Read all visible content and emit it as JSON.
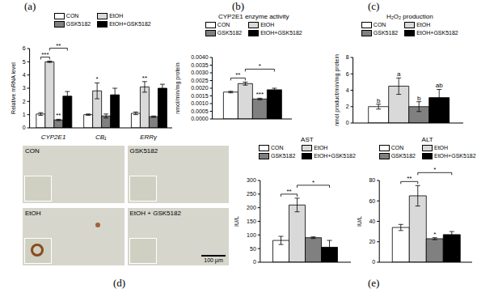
{
  "panel_labels": {
    "a": "(a)",
    "b": "(b)",
    "c": "(c)",
    "d": "(d)",
    "e": "(e)"
  },
  "chart_data": [
    {
      "type": "bar",
      "y_label": "Relative mRNA level",
      "categories": [
        "CYP2E1",
        "CB₁",
        "ERRγ"
      ],
      "legend": "top",
      "ylim": [
        0,
        6
      ],
      "yticks": [
        0,
        1,
        2,
        3,
        4,
        5,
        6
      ],
      "series": [
        {
          "name": "CON",
          "color": "#ffffff",
          "values": [
            1.05,
            1.0,
            1.1
          ],
          "errors": [
            0.1,
            0.05,
            0.1
          ],
          "sig": [
            null,
            null,
            null
          ]
        },
        {
          "name": "EtOH",
          "color": "#d9d9d9",
          "values": [
            5.0,
            2.8,
            3.1
          ],
          "errors": [
            0.05,
            0.6,
            0.4
          ],
          "sig": [
            null,
            "*",
            "**"
          ]
        },
        {
          "name": "GSK5182",
          "color": "#808080",
          "values": [
            0.6,
            0.9,
            0.85
          ],
          "errors": [
            0.05,
            0.15,
            0.05
          ],
          "sig": [
            "**",
            null,
            null
          ]
        },
        {
          "name": "EtOH+GSK5182",
          "color": "#000000",
          "values": [
            2.4,
            2.5,
            3.0
          ],
          "errors": [
            0.35,
            0.5,
            0.3
          ],
          "sig": [
            null,
            null,
            null
          ]
        }
      ],
      "brackets": [
        {
          "category": "CYP2E1",
          "from": "CON",
          "to": "EtOH",
          "label": "***"
        },
        {
          "category": "CYP2E1",
          "from": "EtOH",
          "to": "EtOH+GSK5182",
          "label": "**"
        }
      ]
    },
    {
      "type": "bar",
      "title": "CYP2E1 enzyme activity",
      "y_label": "nmol/min/mg protein",
      "legend": "top",
      "tick_labels": "y",
      "ylim": [
        0,
        0.004
      ],
      "yticks": [
        {
          "value": 0,
          "label": "0.0000"
        },
        {
          "value": 0.0005,
          "label": "0.0005"
        },
        {
          "value": 0.001,
          "label": "0.0010"
        },
        {
          "value": 0.0015,
          "label": "0.0015"
        },
        {
          "value": 0.002,
          "label": "0.0020"
        },
        {
          "value": 0.0025,
          "label": "0.0025"
        },
        {
          "value": 0.003,
          "label": "0.0030"
        },
        {
          "value": 0.0035,
          "label": "0.0035"
        },
        {
          "value": 0.004,
          "label": "0.0040"
        }
      ],
      "series": [
        {
          "name": "CON",
          "color": "#ffffff",
          "values": [
            0.00175
          ],
          "errors": [
            5e-05
          ],
          "sig": [
            null
          ]
        },
        {
          "name": "EtOH",
          "color": "#d9d9d9",
          "values": [
            0.0023
          ],
          "errors": [
            0.0001
          ],
          "sig": [
            null
          ]
        },
        {
          "name": "GSK5182",
          "color": "#808080",
          "values": [
            0.0013
          ],
          "errors": [
            5e-05
          ],
          "sig": [
            "***"
          ]
        },
        {
          "name": "EtOH+GSK5182",
          "color": "#000000",
          "values": [
            0.0019
          ],
          "errors": [
            0.0001
          ],
          "sig": [
            null
          ]
        }
      ],
      "brackets": [
        {
          "from": "CON",
          "to": "EtOH",
          "label": "**"
        },
        {
          "from": "EtOH",
          "to": "EtOH+GSK5182",
          "label": "*"
        }
      ]
    },
    {
      "type": "bar",
      "title": "H₂O₂ production",
      "y_label": "nmol product/min/mg protein",
      "legend": "top",
      "tick_labels": "y",
      "ylim": [
        0,
        8
      ],
      "yticks": [
        0,
        2,
        4,
        6,
        8
      ],
      "series": [
        {
          "name": "CON",
          "color": "#ffffff",
          "values": [
            2.0
          ],
          "errors": [
            0.3
          ],
          "sig": [
            "b"
          ]
        },
        {
          "name": "EtOH",
          "color": "#d9d9d9",
          "values": [
            4.5
          ],
          "errors": [
            1.0
          ],
          "sig": [
            "a"
          ]
        },
        {
          "name": "GSK5182",
          "color": "#808080",
          "values": [
            2.0
          ],
          "errors": [
            0.6
          ],
          "sig": [
            "b"
          ]
        },
        {
          "name": "EtOH+GSK5182",
          "color": "#000000",
          "values": [
            3.1
          ],
          "errors": [
            1.0
          ],
          "sig": [
            "ab"
          ]
        }
      ],
      "brackets": []
    },
    {
      "type": "bar",
      "title": "AST",
      "y_label": "IU/L",
      "legend": "top",
      "tick_labels": "y",
      "ylim": [
        0,
        300
      ],
      "yticks": [
        0,
        50,
        100,
        150,
        200,
        250,
        300
      ],
      "series": [
        {
          "name": "CON",
          "color": "#ffffff",
          "values": [
            80
          ],
          "errors": [
            15
          ],
          "sig": [
            null
          ]
        },
        {
          "name": "EtOH",
          "color": "#d9d9d9",
          "values": [
            210
          ],
          "errors": [
            25
          ],
          "sig": [
            null
          ]
        },
        {
          "name": "GSK5182",
          "color": "#808080",
          "values": [
            90
          ],
          "errors": [
            3
          ],
          "sig": [
            null
          ]
        },
        {
          "name": "EtOH+GSK5182",
          "color": "#000000",
          "values": [
            55
          ],
          "errors": [
            25
          ],
          "sig": [
            null
          ]
        }
      ],
      "brackets": [
        {
          "from": "CON",
          "to": "EtOH",
          "label": "**"
        },
        {
          "from": "EtOH",
          "to": "EtOH+GSK5182",
          "label": "*"
        }
      ]
    },
    {
      "type": "bar",
      "title": "ALT",
      "y_label": "IU/L",
      "legend": "top",
      "tick_labels": "y",
      "ylim": [
        0,
        80
      ],
      "yticks": [
        0,
        20,
        40,
        60,
        80
      ],
      "series": [
        {
          "name": "CON",
          "color": "#ffffff",
          "values": [
            34
          ],
          "errors": [
            3
          ],
          "sig": [
            null
          ]
        },
        {
          "name": "EtOH",
          "color": "#d9d9d9",
          "values": [
            65
          ],
          "errors": [
            10
          ],
          "sig": [
            null
          ]
        },
        {
          "name": "GSK5182",
          "color": "#808080",
          "values": [
            23
          ],
          "errors": [
            1
          ],
          "sig": [
            "*"
          ]
        },
        {
          "name": "EtOH+GSK5182",
          "color": "#000000",
          "values": [
            27
          ],
          "errors": [
            3
          ],
          "sig": [
            null
          ]
        }
      ],
      "brackets": [
        {
          "from": "CON",
          "to": "EtOH",
          "label": "**"
        },
        {
          "from": "EtOH",
          "to": "EtOH+GSK5182",
          "label": "*"
        }
      ]
    }
  ],
  "micrograph": {
    "images": [
      {
        "label": "CON"
      },
      {
        "label": "GSK5182"
      },
      {
        "label": "EtOH"
      },
      {
        "label": "EtOH + GSK5182"
      }
    ],
    "scale_bar": "100 µm"
  }
}
